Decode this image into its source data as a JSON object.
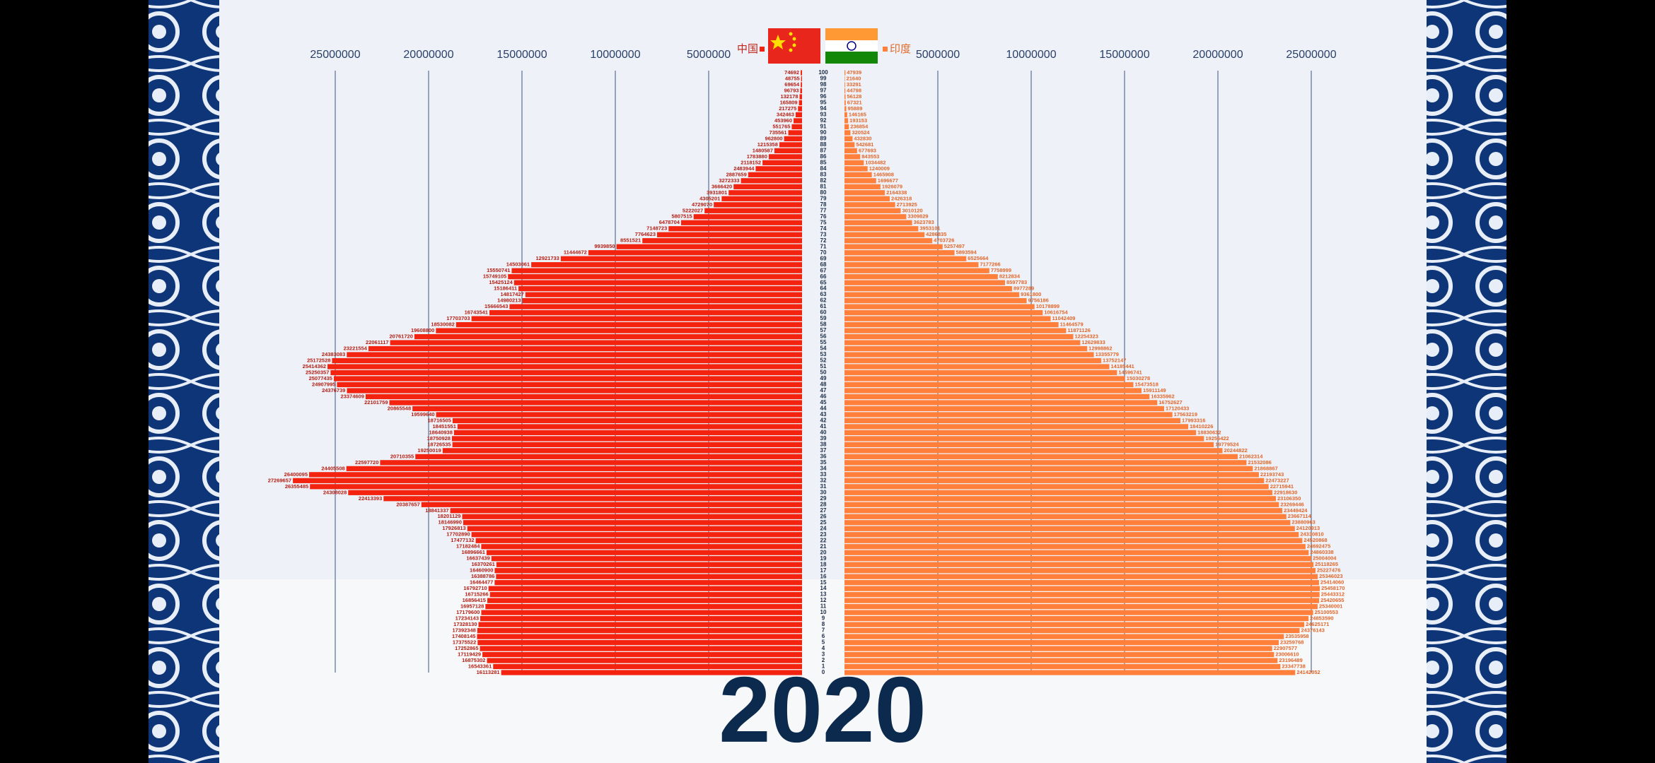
{
  "chart_data": {
    "type": "pyramid",
    "title": "2020",
    "categories": [
      100,
      99,
      98,
      97,
      96,
      95,
      94,
      93,
      92,
      91,
      90,
      89,
      88,
      87,
      86,
      85,
      84,
      83,
      82,
      81,
      80,
      79,
      78,
      77,
      76,
      75,
      74,
      73,
      72,
      71,
      70,
      69,
      68,
      67,
      66,
      65,
      64,
      63,
      62,
      61,
      60,
      59,
      58,
      57,
      56,
      55,
      54,
      53,
      52,
      51,
      50,
      49,
      48,
      47,
      46,
      45,
      44,
      43,
      42,
      41,
      40,
      39,
      38,
      37,
      36,
      35,
      34,
      33,
      32,
      31,
      30,
      29,
      28,
      27,
      26,
      25,
      24,
      23,
      22,
      21,
      20,
      19,
      18,
      17,
      16,
      15,
      14,
      13,
      12,
      11,
      10,
      9,
      8,
      7,
      6,
      5,
      4,
      3,
      2,
      1,
      0
    ],
    "series": [
      {
        "name": "中国",
        "color": "#f3230f",
        "side": "left",
        "values": [
          74692,
          48755,
          69654,
          96793,
          132178,
          165809,
          217275,
          342463,
          453960,
          551765,
          735561,
          962800,
          1215358,
          1480587,
          1783880,
          2118152,
          2483944,
          2887659,
          3272333,
          3666420,
          3931801,
          4305201,
          4729070,
          5222027,
          5807515,
          6478704,
          7148723,
          7764623,
          8551521,
          9939850,
          11444672,
          12921733,
          14503061,
          15550741,
          15749105,
          15425124,
          15186411,
          14817427,
          14980213,
          15666543,
          16743541,
          17703703,
          18530082,
          19608800,
          20761720,
          22061117,
          23221554,
          24383083,
          25172528,
          25414362,
          25250357,
          25077435,
          24907995,
          24376739,
          23374609,
          22101759,
          20865548,
          19599640,
          18716505,
          18451551,
          18640938,
          18750928,
          18726535,
          19250019,
          20710355,
          22597720,
          24405508,
          26400095,
          27269657,
          26355485,
          24308028,
          22413393,
          20387657,
          18841337,
          18201129,
          18146990,
          17926813,
          17702890,
          17477132,
          17182484,
          16896661,
          16637439,
          16370261,
          16460900,
          16388786,
          16464477,
          16792710,
          16715266,
          16856415,
          16957128,
          17179600,
          17234143,
          17328130,
          17392348,
          17408145,
          17375522,
          17252865,
          17119429,
          16875302,
          16543361,
          16113281
        ]
      },
      {
        "name": "印度",
        "color": "#ff7f3b",
        "side": "right",
        "values": [
          47939,
          21640,
          33291,
          44798,
          56128,
          67321,
          95889,
          146165,
          193153,
          236854,
          320524,
          432830,
          542681,
          677693,
          843553,
          1034482,
          1240009,
          1465908,
          1696677,
          1926079,
          2164338,
          2426318,
          2713925,
          3010120,
          3309829,
          3623783,
          3953101,
          4286835,
          4703726,
          5257497,
          5893594,
          6525664,
          7177266,
          7758999,
          8212834,
          8597783,
          8977289,
          9361800,
          9756186,
          10178899,
          10616754,
          11042409,
          11464579,
          11871126,
          12254323,
          12629833,
          12998862,
          13355779,
          13752147,
          14185441,
          14596741,
          15030278,
          15473518,
          15911149,
          16335962,
          16752627,
          17120433,
          17563219,
          17993316,
          18410226,
          18830632,
          19256422,
          19779524,
          20244822,
          21062314,
          21532086,
          21868867,
          22193743,
          22473227,
          22715941,
          22918630,
          23106350,
          23269446,
          23449424,
          23667114,
          23880963,
          24120913,
          24330810,
          24520868,
          24692475,
          24860338,
          25004004,
          25118265,
          25227476,
          25346023,
          25414060,
          25458170,
          25443312,
          25420655,
          25340001,
          25100553,
          24853590,
          24625171,
          24376143,
          23535958,
          23259768,
          22907577,
          23006610,
          23196489,
          23347738,
          24142052
        ]
      }
    ],
    "xlim": [
      0,
      28000000
    ],
    "xticks": [
      5000000,
      10000000,
      15000000,
      20000000,
      25000000
    ],
    "grid": true
  }
}
